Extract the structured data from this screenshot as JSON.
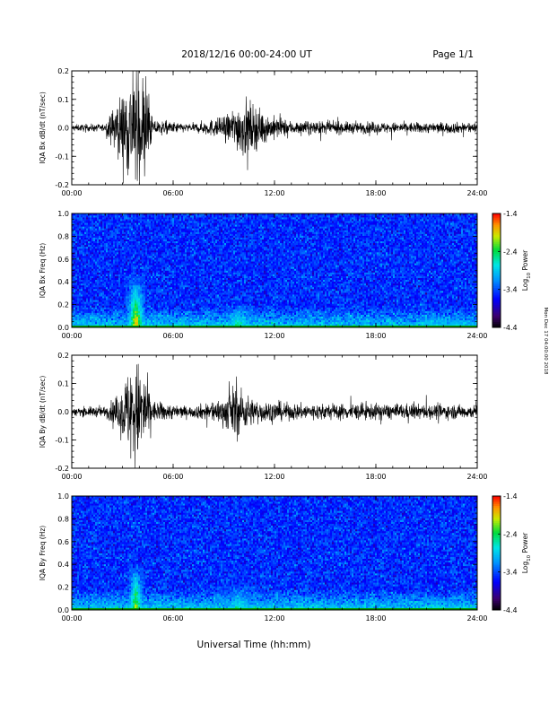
{
  "header": {
    "date_range": "2018/12/16  00:00-24:00 UT",
    "page": "Page 1/1"
  },
  "footer": {
    "xlabel": "Universal Time (hh:mm)"
  },
  "side_note": "Mon Dec 17 04:00:00 2018",
  "colors": {
    "trace": "#000000",
    "background": "#ffffff"
  },
  "chart_data": [
    {
      "type": "line",
      "id": "bx-waveform",
      "ylabel": "IQA Bx dB/dt (nT/sec)",
      "xlim": [
        0,
        24
      ],
      "ylim": [
        -0.2,
        0.2
      ],
      "x_ticks": [
        "00:00",
        "06:00",
        "12:00",
        "18:00",
        "24:00"
      ],
      "y_ticks": [
        "0.2",
        "0.1",
        "0.0",
        "-0.1",
        "-0.2"
      ],
      "y_tick_values": [
        0.2,
        0.1,
        0.0,
        -0.1,
        -0.2
      ],
      "baseline": 0.0,
      "noise_amplitude": 0.012,
      "envelope": [
        {
          "hour": 0.0,
          "amp": 0.012
        },
        {
          "hour": 2.0,
          "amp": 0.014
        },
        {
          "hour": 2.3,
          "amp": 0.05
        },
        {
          "hour": 3.5,
          "amp": 0.2
        },
        {
          "hour": 4.3,
          "amp": 0.2
        },
        {
          "hour": 4.8,
          "amp": 0.03
        },
        {
          "hour": 7.0,
          "amp": 0.014
        },
        {
          "hour": 9.0,
          "amp": 0.04
        },
        {
          "hour": 10.2,
          "amp": 0.11
        },
        {
          "hour": 11.5,
          "amp": 0.05
        },
        {
          "hour": 13.0,
          "amp": 0.025
        },
        {
          "hour": 18.0,
          "amp": 0.02
        },
        {
          "hour": 24.0,
          "amp": 0.02
        }
      ]
    },
    {
      "type": "heatmap",
      "id": "bx-spectrogram",
      "ylabel": "IQA Bx Freq (Hz)",
      "xlim": [
        0,
        24
      ],
      "ylim": [
        0.0,
        1.0
      ],
      "x_ticks": [
        "00:00",
        "06:00",
        "12:00",
        "18:00",
        "24:00"
      ],
      "y_ticks": [
        "1.0",
        "0.8",
        "0.6",
        "0.4",
        "0.2",
        "0.0"
      ],
      "y_tick_values": [
        1.0,
        0.8,
        0.6,
        0.4,
        0.2,
        0.0
      ],
      "colorbar": {
        "label": "Log10 Power",
        "label_base": "Log",
        "label_sub": "10",
        "label_rest": " Power",
        "range": [
          -4.4,
          -1.4
        ],
        "ticks": [
          "-1.4",
          "-2.4",
          "-3.4",
          "-4.4"
        ],
        "tick_values": [
          -1.4,
          -2.4,
          -3.4,
          -4.4
        ]
      },
      "background_power": -3.5,
      "events": [
        {
          "hour_start": 3.2,
          "hour_end": 4.4,
          "freq_max": 0.45,
          "peak_power": -1.6
        },
        {
          "hour_start": 8.8,
          "hour_end": 11.0,
          "freq_max": 0.2,
          "peak_power": -2.4
        },
        {
          "hour_start": 19.5,
          "hour_end": 24.0,
          "freq_max": 0.12,
          "peak_power": -2.7
        }
      ]
    },
    {
      "type": "line",
      "id": "by-waveform",
      "ylabel": "IQA By dB/dt (nT/sec)",
      "xlim": [
        0,
        24
      ],
      "ylim": [
        -0.2,
        0.2
      ],
      "x_ticks": [
        "00:00",
        "06:00",
        "12:00",
        "18:00",
        "24:00"
      ],
      "y_ticks": [
        "0.2",
        "0.1",
        "0.0",
        "-0.1",
        "-0.2"
      ],
      "y_tick_values": [
        0.2,
        0.1,
        0.0,
        -0.1,
        -0.2
      ],
      "baseline": 0.0,
      "noise_amplitude": 0.014,
      "envelope": [
        {
          "hour": 0.0,
          "amp": 0.016
        },
        {
          "hour": 2.0,
          "amp": 0.02
        },
        {
          "hour": 2.8,
          "amp": 0.06
        },
        {
          "hour": 3.6,
          "amp": 0.2
        },
        {
          "hour": 4.2,
          "amp": 0.17
        },
        {
          "hour": 4.8,
          "amp": 0.04
        },
        {
          "hour": 7.0,
          "amp": 0.018
        },
        {
          "hour": 9.0,
          "amp": 0.05
        },
        {
          "hour": 9.6,
          "amp": 0.1
        },
        {
          "hour": 10.8,
          "amp": 0.045
        },
        {
          "hour": 13.0,
          "amp": 0.03
        },
        {
          "hour": 18.0,
          "amp": 0.03
        },
        {
          "hour": 24.0,
          "amp": 0.025
        }
      ]
    },
    {
      "type": "heatmap",
      "id": "by-spectrogram",
      "ylabel": "IQA By Freq (Hz)",
      "xlim": [
        0,
        24
      ],
      "ylim": [
        0.0,
        1.0
      ],
      "x_ticks": [
        "00:00",
        "06:00",
        "12:00",
        "18:00",
        "24:00"
      ],
      "y_ticks": [
        "1.0",
        "0.8",
        "0.6",
        "0.4",
        "0.2",
        "0.0"
      ],
      "y_tick_values": [
        1.0,
        0.8,
        0.6,
        0.4,
        0.2,
        0.0
      ],
      "colorbar": {
        "label": "Log10 Power",
        "label_base": "Log",
        "label_sub": "10",
        "label_rest": " Power",
        "range": [
          -4.4,
          -1.4
        ],
        "ticks": [
          "-1.4",
          "-2.4",
          "-3.4",
          "-4.4"
        ],
        "tick_values": [
          -1.4,
          -2.4,
          -3.4,
          -4.4
        ]
      },
      "background_power": -3.5,
      "events": [
        {
          "hour_start": 3.3,
          "hour_end": 4.3,
          "freq_max": 0.4,
          "peak_power": -1.9
        },
        {
          "hour_start": 8.6,
          "hour_end": 11.2,
          "freq_max": 0.22,
          "peak_power": -2.6
        },
        {
          "hour_start": 19.5,
          "hour_end": 24.0,
          "freq_max": 0.12,
          "peak_power": -2.8
        }
      ]
    }
  ]
}
